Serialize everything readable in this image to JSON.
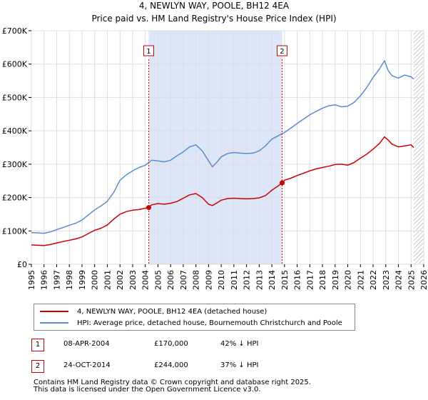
{
  "chart_data": {
    "type": "line",
    "title": "4, NEWLYN WAY, POOLE, BH12 4EA",
    "subtitle": "Price paid vs. HM Land Registry's House Price Index (HPI)",
    "xlabel": "",
    "ylabel": "",
    "xlim": [
      1995,
      2026
    ],
    "ylim": [
      0,
      700000
    ],
    "grid": true,
    "y_ticks": [
      0,
      100000,
      200000,
      300000,
      400000,
      500000,
      600000,
      700000
    ],
    "y_tick_labels": [
      "£0",
      "£100K",
      "£200K",
      "£300K",
      "£400K",
      "£500K",
      "£600K",
      "£700K"
    ],
    "x_ticks": [
      1995,
      1996,
      1997,
      1998,
      1999,
      2000,
      2001,
      2002,
      2003,
      2004,
      2005,
      2006,
      2007,
      2008,
      2009,
      2010,
      2011,
      2012,
      2013,
      2014,
      2015,
      2016,
      2017,
      2018,
      2019,
      2020,
      2021,
      2022,
      2023,
      2024,
      2025,
      2026
    ],
    "x_tick_labels": [
      "1995",
      "1996",
      "1997",
      "1998",
      "1999",
      "2000",
      "2001",
      "2002",
      "2003",
      "2004",
      "2005",
      "2006",
      "2007",
      "2008",
      "2009",
      "2010",
      "2011",
      "2012",
      "2013",
      "2014",
      "2015",
      "2016",
      "2017",
      "2018",
      "2019",
      "2020",
      "2021",
      "2022",
      "2023",
      "2024",
      "2025",
      "2026"
    ],
    "shaded_region": {
      "from": 2004.27,
      "to": 2014.81,
      "color": "#dde6f7"
    },
    "hatched_future_from": 2025.2,
    "series": [
      {
        "name": "4, NEWLYN WAY, POOLE, BH12 4EA (detached house)",
        "color": "#cc0000",
        "x": [
          1995,
          1995.5,
          1996,
          1996.5,
          1997,
          1997.5,
          1998,
          1998.5,
          1999,
          1999.5,
          2000,
          2000.5,
          2001,
          2001.5,
          2002,
          2002.5,
          2003,
          2003.5,
          2004,
          2004.27,
          2004.5,
          2005,
          2005.5,
          2006,
          2006.5,
          2007,
          2007.5,
          2008,
          2008.5,
          2009,
          2009.3,
          2009.7,
          2010,
          2010.5,
          2011,
          2011.5,
          2012,
          2012.5,
          2013,
          2013.5,
          2014,
          2014.5,
          2014.81,
          2015,
          2015.5,
          2016,
          2016.5,
          2017,
          2017.5,
          2018,
          2018.5,
          2019,
          2019.5,
          2020,
          2020.5,
          2021,
          2021.5,
          2022,
          2022.5,
          2022.9,
          2023.2,
          2023.5,
          2024,
          2024.5,
          2025,
          2025.2
        ],
        "values": [
          58000,
          57000,
          56000,
          59000,
          64000,
          68000,
          72000,
          76000,
          82000,
          92000,
          102000,
          108000,
          118000,
          135000,
          150000,
          158000,
          162000,
          164000,
          168000,
          170000,
          178000,
          182000,
          180000,
          183000,
          188000,
          198000,
          208000,
          212000,
          200000,
          180000,
          176000,
          185000,
          192000,
          197000,
          198000,
          197000,
          196000,
          197000,
          199000,
          206000,
          222000,
          235000,
          244000,
          252000,
          258000,
          266000,
          273000,
          280000,
          286000,
          290000,
          294000,
          299000,
          300000,
          297000,
          305000,
          318000,
          330000,
          345000,
          362000,
          382000,
          372000,
          360000,
          352000,
          355000,
          358000,
          350000
        ]
      },
      {
        "name": "HPI: Average price, detached house, Bournemouth Christchurch and Poole",
        "color": "#5b8ccf",
        "x": [
          1995,
          1995.5,
          1996,
          1996.5,
          1997,
          1997.5,
          1998,
          1998.5,
          1999,
          1999.5,
          2000,
          2000.5,
          2001,
          2001.5,
          2002,
          2002.5,
          2003,
          2003.5,
          2004,
          2004.5,
          2005,
          2005.5,
          2006,
          2006.5,
          2007,
          2007.5,
          2008,
          2008.5,
          2009,
          2009.3,
          2009.7,
          2010,
          2010.5,
          2011,
          2011.5,
          2012,
          2012.5,
          2013,
          2013.5,
          2014,
          2014.5,
          2015,
          2015.5,
          2016,
          2016.5,
          2017,
          2017.5,
          2018,
          2018.5,
          2019,
          2019.5,
          2020,
          2020.5,
          2021,
          2021.5,
          2022,
          2022.5,
          2022.9,
          2023.2,
          2023.5,
          2024,
          2024.5,
          2025,
          2025.2
        ],
        "values": [
          95000,
          94000,
          93000,
          97000,
          104000,
          110000,
          117000,
          123000,
          133000,
          148000,
          163000,
          175000,
          189000,
          215000,
          252000,
          268000,
          280000,
          290000,
          297000,
          312000,
          310000,
          307000,
          312000,
          325000,
          337000,
          352000,
          358000,
          340000,
          310000,
          292000,
          308000,
          322000,
          332000,
          335000,
          333000,
          332000,
          333000,
          340000,
          355000,
          375000,
          385000,
          395000,
          408000,
          422000,
          435000,
          448000,
          458000,
          468000,
          475000,
          478000,
          472000,
          474000,
          485000,
          505000,
          530000,
          560000,
          585000,
          610000,
          580000,
          565000,
          558000,
          567000,
          562000,
          555000
        ]
      }
    ],
    "annotations": [
      {
        "label": "1",
        "x": 2004.27,
        "y": 170000
      },
      {
        "label": "2",
        "x": 2014.81,
        "y": 244000
      }
    ]
  },
  "legend": {
    "items": [
      {
        "label": "4, NEWLYN WAY, POOLE, BH12 4EA (detached house)",
        "color": "#cc0000"
      },
      {
        "label": "HPI: Average price, detached house, Bournemouth Christchurch and Poole",
        "color": "#5b8ccf"
      }
    ]
  },
  "transactions": [
    {
      "num": "1",
      "date": "08-APR-2004",
      "price": "£170,000",
      "hpi": "42% ↓ HPI"
    },
    {
      "num": "2",
      "date": "24-OCT-2014",
      "price": "£244,000",
      "hpi": "37% ↓ HPI"
    }
  ],
  "footer": {
    "line1": "Contains HM Land Registry data © Crown copyright and database right 2025.",
    "line2": "This data is licensed under the Open Government Licence v3.0."
  }
}
